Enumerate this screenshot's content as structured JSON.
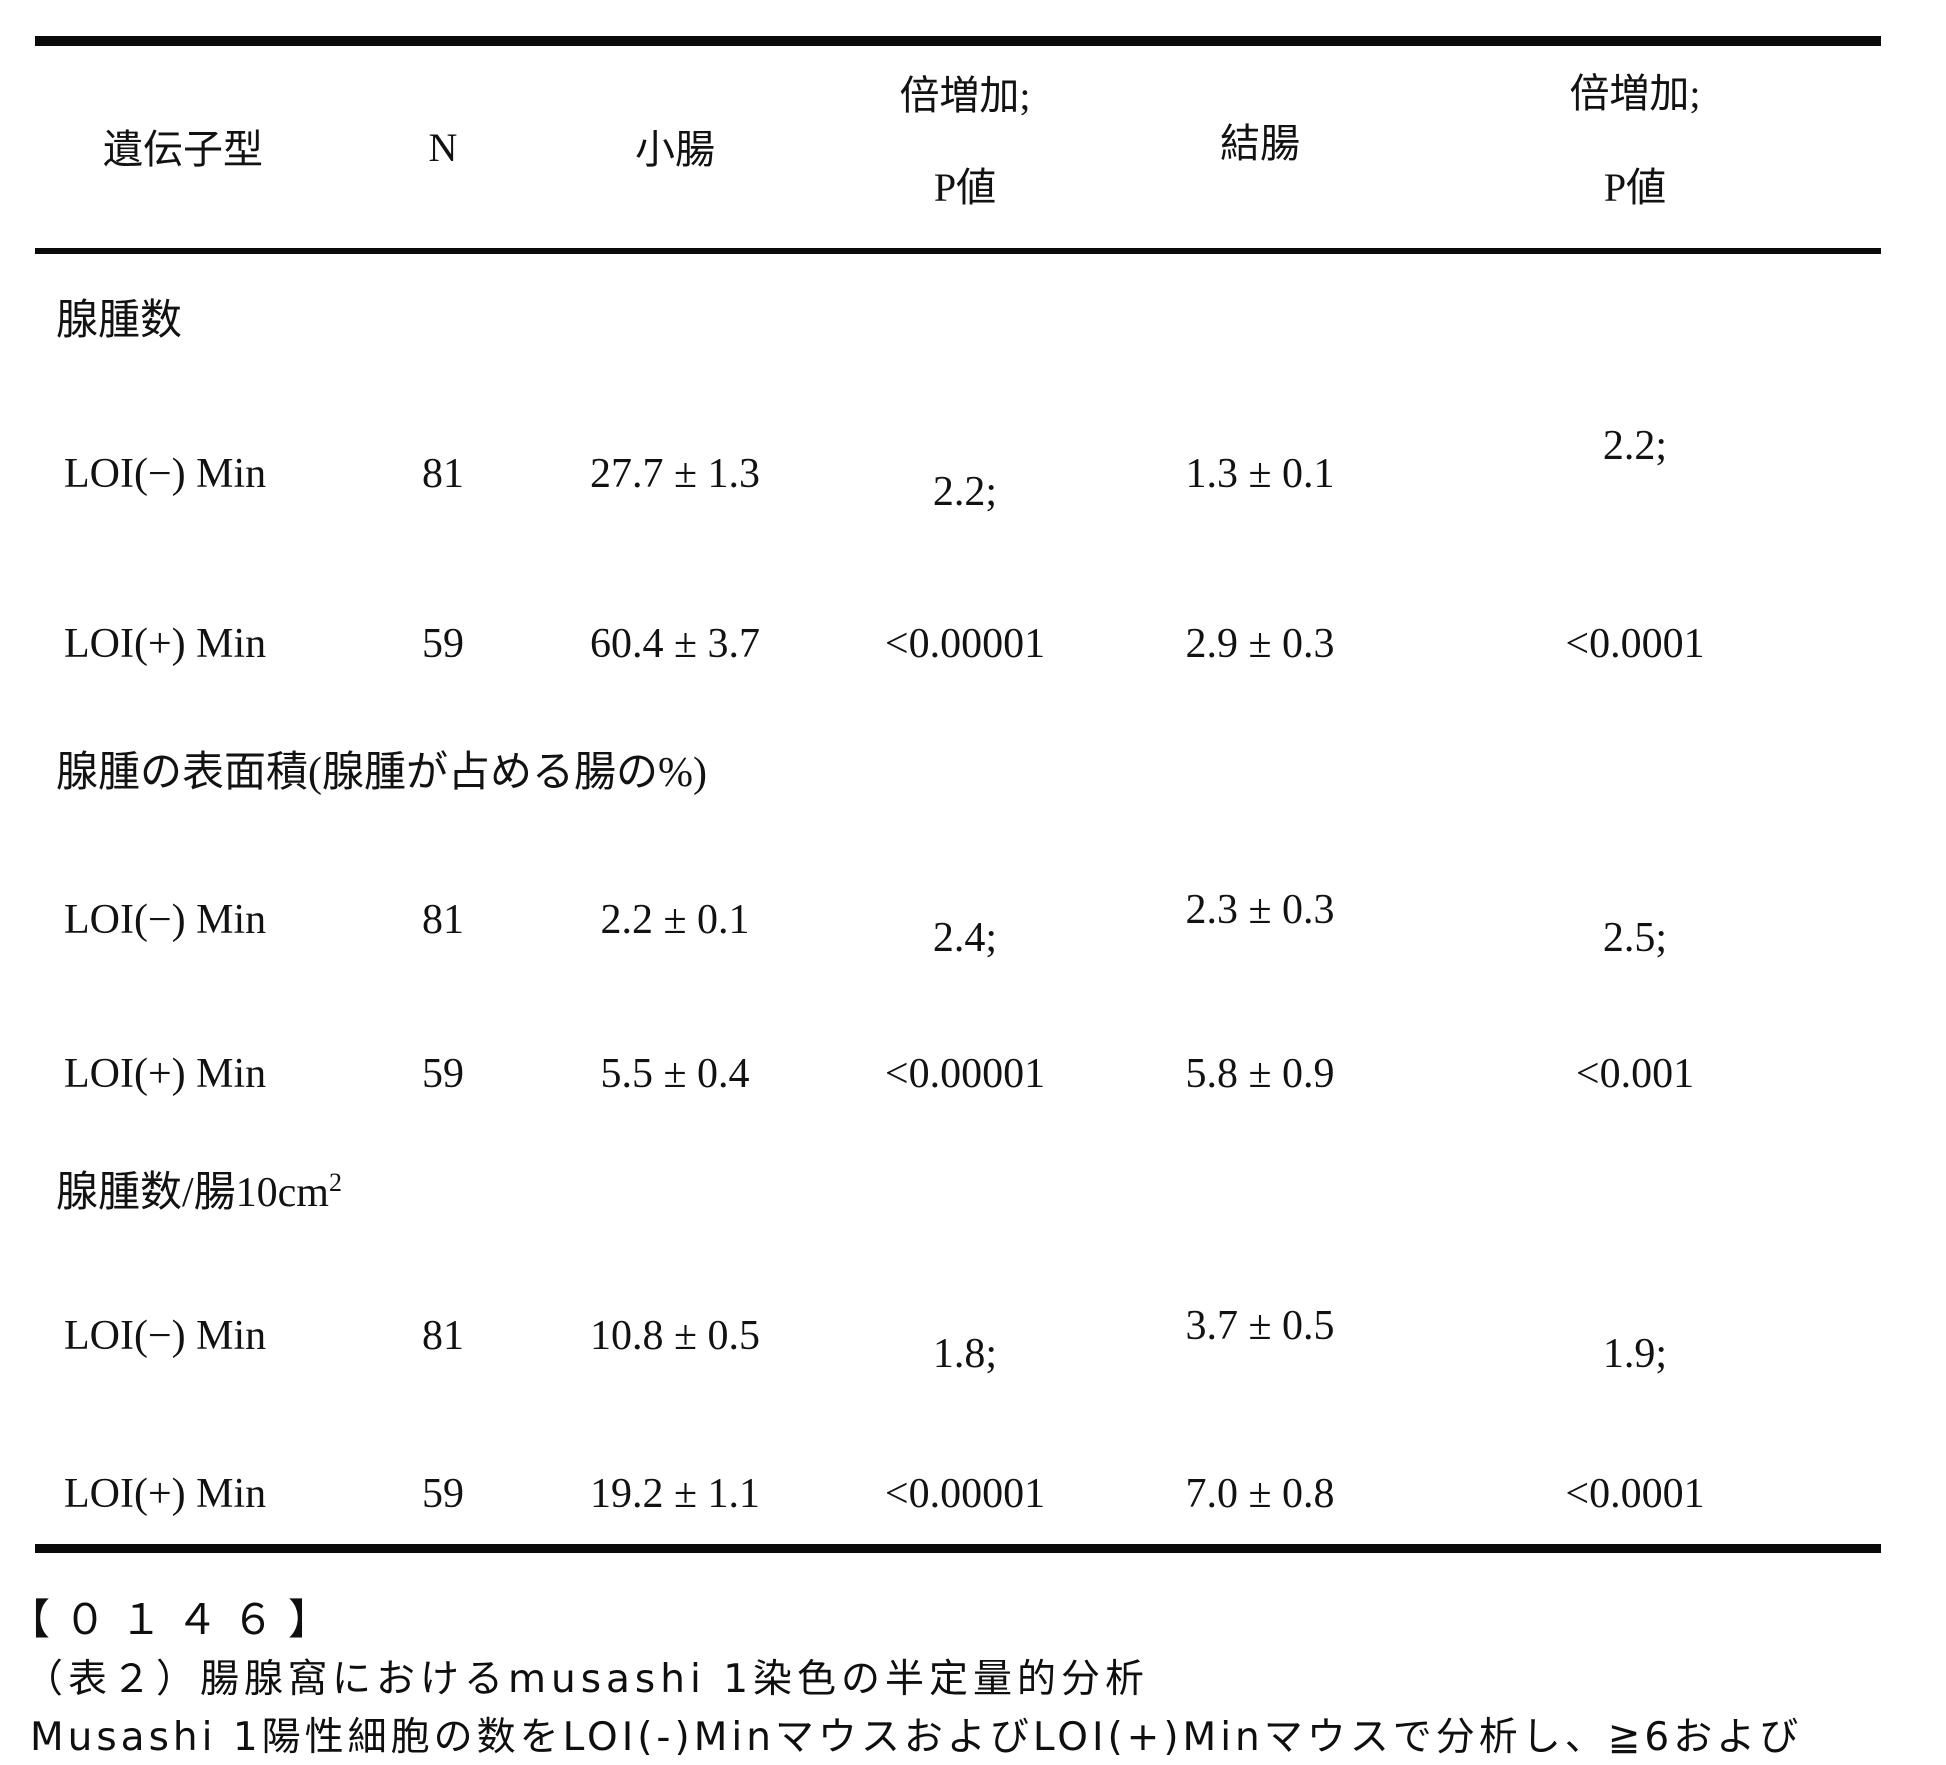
{
  "table": {
    "header": {
      "genotype": "遺伝子型",
      "n": "N",
      "small_intestine": "小腸",
      "fold_increase_1": "倍増加;",
      "p_value_1": "P値",
      "colon": "結腸",
      "fold_increase_2": "倍増加;",
      "p_value_2": "P値"
    },
    "sections": [
      {
        "label": "腺腫数",
        "rows": [
          {
            "cells": [
              "LOI(−) Min",
              "81",
              "27.7 ± 1.3",
              "2.2;",
              "1.3 ± 0.1",
              "2.2;"
            ]
          },
          {
            "cells": [
              "LOI(+) Min",
              "59",
              "60.4 ± 3.7",
              "<0.00001",
              "2.9 ± 0.3",
              "<0.0001"
            ]
          }
        ]
      },
      {
        "label": "腺腫の表面積(腺腫が占める腸の%)",
        "rows": [
          {
            "cells": [
              "LOI(−) Min",
              "81",
              "2.2 ± 0.1",
              "2.4;",
              "2.3 ± 0.3",
              "2.5;"
            ]
          },
          {
            "cells": [
              "LOI(+) Min",
              "59",
              "5.5 ± 0.4",
              "<0.00001",
              "5.8 ± 0.9",
              "<0.001"
            ]
          }
        ]
      },
      {
        "label": "腺腫数/腸10cm",
        "label_sup": "2",
        "rows": [
          {
            "cells": [
              "LOI(−) Min",
              "81",
              "10.8 ± 0.5",
              "1.8;",
              "3.7 ± 0.5",
              "1.9;"
            ]
          },
          {
            "cells": [
              "LOI(+) Min",
              "59",
              "19.2 ± 1.1",
              "<0.00001",
              "7.0 ± 0.8",
              "<0.0001"
            ]
          }
        ]
      }
    ]
  },
  "footer": {
    "paragraph_number": "【０１４６】",
    "caption": "（表２）腸腺窩におけるmusashi 1染色の半定量的分析",
    "note": "Musashi 1陽性細胞の数をLOI(-)MinマウスおよびLOI(+)Minマウスで分析し、≧6および"
  }
}
